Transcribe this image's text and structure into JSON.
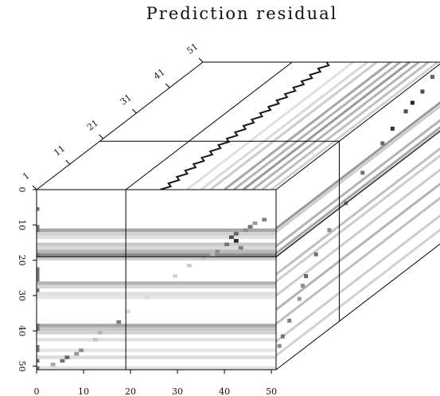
{
  "chart_data": {
    "type": "heatmap",
    "title": "Prediction residual",
    "colormap": "grayscale",
    "background": "#ffffff",
    "front_panel": {
      "axis_left": {
        "ticks": [
          0,
          10,
          20,
          30,
          40,
          50
        ],
        "labels": [
          "0",
          "10",
          "20",
          "30",
          "40",
          "50"
        ],
        "range": [
          0,
          51
        ]
      },
      "axis_bottom": {
        "ticks": [
          0,
          10,
          20,
          30,
          40,
          50
        ],
        "labels": [
          "0",
          "10",
          "20",
          "30",
          "40",
          "50"
        ],
        "range": [
          0,
          51
        ]
      },
      "crosshair": {
        "col": 19,
        "row": 19
      },
      "horizontal_bands": [
        {
          "row": 11,
          "intensity": 0.35
        },
        {
          "row": 12,
          "intensity": 0.18
        },
        {
          "row": 13,
          "intensity": 0.12
        },
        {
          "row": 15,
          "intensity": 0.22
        },
        {
          "row": 16,
          "intensity": 0.15
        },
        {
          "row": 17,
          "intensity": 0.28
        },
        {
          "row": 18,
          "intensity": 0.45
        },
        {
          "row": 19,
          "intensity": 0.2
        },
        {
          "row": 26,
          "intensity": 0.3
        },
        {
          "row": 27,
          "intensity": 0.16
        },
        {
          "row": 29,
          "intensity": 0.12
        },
        {
          "row": 30,
          "intensity": 0.1
        },
        {
          "row": 38,
          "intensity": 0.35
        },
        {
          "row": 39,
          "intensity": 0.22
        },
        {
          "row": 40,
          "intensity": 0.18
        },
        {
          "row": 42,
          "intensity": 0.12
        },
        {
          "row": 45,
          "intensity": 0.1
        },
        {
          "row": 47,
          "intensity": 0.14
        },
        {
          "row": 50,
          "intensity": 0.12
        }
      ],
      "diagonal_spots": [
        {
          "row": 8,
          "col": 48,
          "intensity": 0.5
        },
        {
          "row": 9,
          "col": 46,
          "intensity": 0.4
        },
        {
          "row": 10,
          "col": 45,
          "intensity": 0.55
        },
        {
          "row": 11,
          "col": 44,
          "intensity": 0.45
        },
        {
          "row": 12,
          "col": 42,
          "intensity": 0.6
        },
        {
          "row": 13,
          "col": 41,
          "intensity": 0.7
        },
        {
          "row": 14,
          "col": 42,
          "intensity": 0.85
        },
        {
          "row": 15,
          "col": 40,
          "intensity": 0.55
        },
        {
          "row": 16,
          "col": 43,
          "intensity": 0.5
        },
        {
          "row": 17,
          "col": 38,
          "intensity": 0.45
        },
        {
          "row": 18,
          "col": 37,
          "intensity": 0.3
        },
        {
          "row": 19,
          "col": 35,
          "intensity": 0.25
        },
        {
          "row": 21,
          "col": 32,
          "intensity": 0.2
        },
        {
          "row": 24,
          "col": 29,
          "intensity": 0.18
        },
        {
          "row": 27,
          "col": 26,
          "intensity": 0.15
        },
        {
          "row": 30,
          "col": 23,
          "intensity": 0.15
        },
        {
          "row": 34,
          "col": 19,
          "intensity": 0.15
        },
        {
          "row": 37,
          "col": 17,
          "intensity": 0.5
        },
        {
          "row": 38,
          "col": 16,
          "intensity": 0.35
        },
        {
          "row": 40,
          "col": 13,
          "intensity": 0.3
        },
        {
          "row": 42,
          "col": 12,
          "intensity": 0.25
        },
        {
          "row": 45,
          "col": 9,
          "intensity": 0.45
        },
        {
          "row": 46,
          "col": 8,
          "intensity": 0.4
        },
        {
          "row": 47,
          "col": 6,
          "intensity": 0.6
        },
        {
          "row": 48,
          "col": 5,
          "intensity": 0.55
        },
        {
          "row": 49,
          "col": 3,
          "intensity": 0.35
        }
      ],
      "left_edge_column": {
        "col": 0,
        "rows": [
          5,
          10,
          11,
          18,
          22,
          23,
          24,
          25,
          28,
          38,
          39,
          44,
          45,
          48,
          50
        ],
        "intensity": 0.55
      }
    },
    "top_panel": {
      "axis_depth": {
        "ticks": [
          1,
          11,
          21,
          31,
          41,
          51
        ],
        "labels": [
          "1",
          "11",
          "21",
          "31",
          "41",
          "51"
        ],
        "range": [
          1,
          51
        ]
      },
      "crosshair": {
        "col": 19,
        "depth": 20
      },
      "streaks": [
        {
          "col": 37,
          "intensity": 0.9,
          "wiggle": true
        },
        {
          "col": 42,
          "intensity": 0.12
        },
        {
          "col": 45,
          "intensity": 0.15
        },
        {
          "col": 47,
          "intensity": 0.2
        },
        {
          "col": 50,
          "intensity": 0.35
        },
        {
          "col": 52,
          "intensity": 0.3
        },
        {
          "col": 54,
          "intensity": 0.4
        },
        {
          "col": 56,
          "intensity": 0.3
        },
        {
          "col": 58,
          "intensity": 0.25
        },
        {
          "col": 60,
          "intensity": 0.18
        }
      ]
    },
    "side_panel": {
      "crosshair": {
        "depth": 20,
        "row": 19
      },
      "bands": [
        {
          "row": 11,
          "intensity": 0.4
        },
        {
          "row": 12,
          "intensity": 0.2
        },
        {
          "row": 16,
          "intensity": 0.3
        },
        {
          "row": 18,
          "intensity": 0.35
        },
        {
          "row": 19,
          "intensity": 0.2
        },
        {
          "row": 24,
          "intensity": 0.25
        },
        {
          "row": 26,
          "intensity": 0.2
        },
        {
          "row": 30,
          "intensity": 0.2
        },
        {
          "row": 34,
          "intensity": 0.3
        },
        {
          "row": 38,
          "intensity": 0.25
        },
        {
          "row": 43,
          "intensity": 0.2
        },
        {
          "row": 47,
          "intensity": 0.18
        }
      ],
      "spots": [
        {
          "row": 2,
          "depth": 48,
          "intensity": 0.6
        },
        {
          "row": 4,
          "depth": 45,
          "intensity": 0.7
        },
        {
          "row": 5,
          "depth": 42,
          "intensity": 0.85
        },
        {
          "row": 6,
          "depth": 40,
          "intensity": 0.7
        },
        {
          "row": 8,
          "depth": 36,
          "intensity": 0.8
        },
        {
          "row": 10,
          "depth": 33,
          "intensity": 0.6
        },
        {
          "row": 14,
          "depth": 27,
          "intensity": 0.55
        },
        {
          "row": 19,
          "depth": 22,
          "intensity": 0.5
        },
        {
          "row": 23,
          "depth": 17,
          "intensity": 0.45
        },
        {
          "row": 27,
          "depth": 13,
          "intensity": 0.55
        },
        {
          "row": 31,
          "depth": 10,
          "intensity": 0.6
        },
        {
          "row": 33,
          "depth": 9,
          "intensity": 0.45
        },
        {
          "row": 36,
          "depth": 8,
          "intensity": 0.4
        },
        {
          "row": 40,
          "depth": 5,
          "intensity": 0.5
        },
        {
          "row": 43,
          "depth": 3,
          "intensity": 0.55
        },
        {
          "row": 45,
          "depth": 2,
          "intensity": 0.45
        }
      ]
    }
  }
}
